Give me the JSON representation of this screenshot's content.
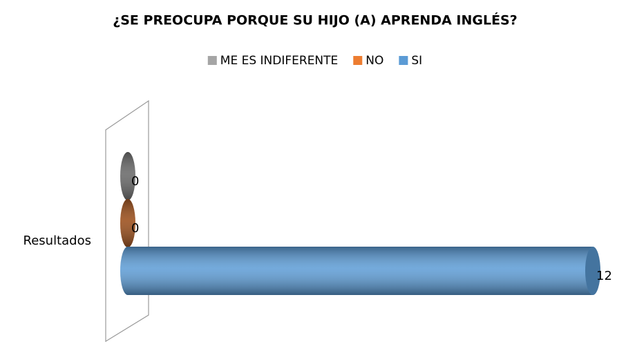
{
  "chart_data": {
    "type": "bar3d-horizontal",
    "title": "¿SE PREOCUPA PORQUE SU HIJO (A) APRENDA INGLÉS?",
    "categories": [
      "Resultados"
    ],
    "series": [
      {
        "name": "ME ES INDIFERENTE",
        "color": "#a5a5a5",
        "values": [
          0
        ]
      },
      {
        "name": "NO",
        "color": "#ed7d31",
        "values": [
          0
        ]
      },
      {
        "name": "SI",
        "color": "#5b9bd5",
        "values": [
          12
        ]
      }
    ],
    "legend": "top"
  }
}
